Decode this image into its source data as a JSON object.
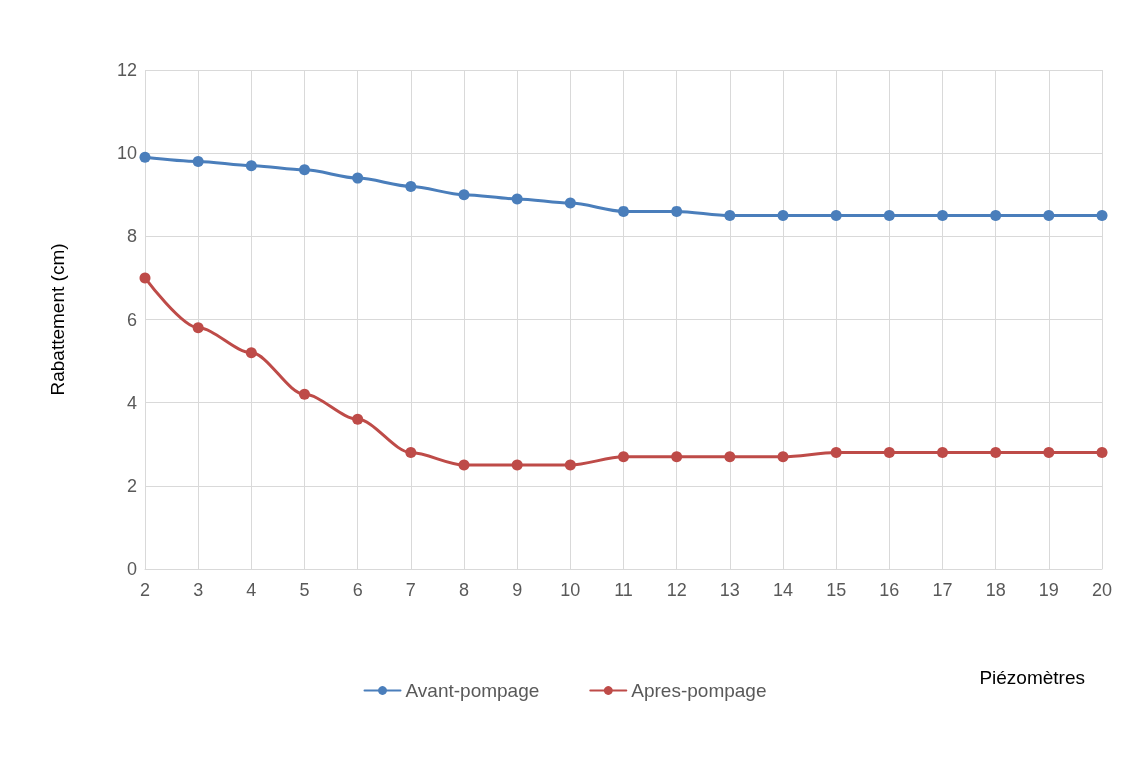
{
  "chart_data": {
    "type": "line",
    "xlabel": "Piézomètres",
    "ylabel": "Rabattement (cm)",
    "categories": [
      "2",
      "3",
      "4",
      "5",
      "6",
      "7",
      "8",
      "9",
      "10",
      "11",
      "12",
      "13",
      "14",
      "15",
      "16",
      "17",
      "18",
      "19",
      "20"
    ],
    "series": [
      {
        "name": "Avant-pompage",
        "color": "#4a7ebb",
        "values": [
          9.9,
          9.8,
          9.7,
          9.6,
          9.4,
          9.2,
          9.0,
          8.9,
          8.8,
          8.6,
          8.6,
          8.5,
          8.5,
          8.5,
          8.5,
          8.5,
          8.5,
          8.5,
          8.5
        ]
      },
      {
        "name": "Apres-pompage",
        "color": "#be4b48",
        "values": [
          7.0,
          5.8,
          5.2,
          4.2,
          3.6,
          2.8,
          2.5,
          2.5,
          2.5,
          2.7,
          2.7,
          2.7,
          2.7,
          2.8,
          2.8,
          2.8,
          2.8,
          2.8,
          2.8
        ]
      }
    ],
    "ylim": [
      0,
      12
    ],
    "yticks": [
      0,
      2,
      4,
      6,
      8,
      10,
      12
    ],
    "grid": true,
    "legend": "bottom",
    "marker": "circle",
    "line_style": "solid"
  }
}
